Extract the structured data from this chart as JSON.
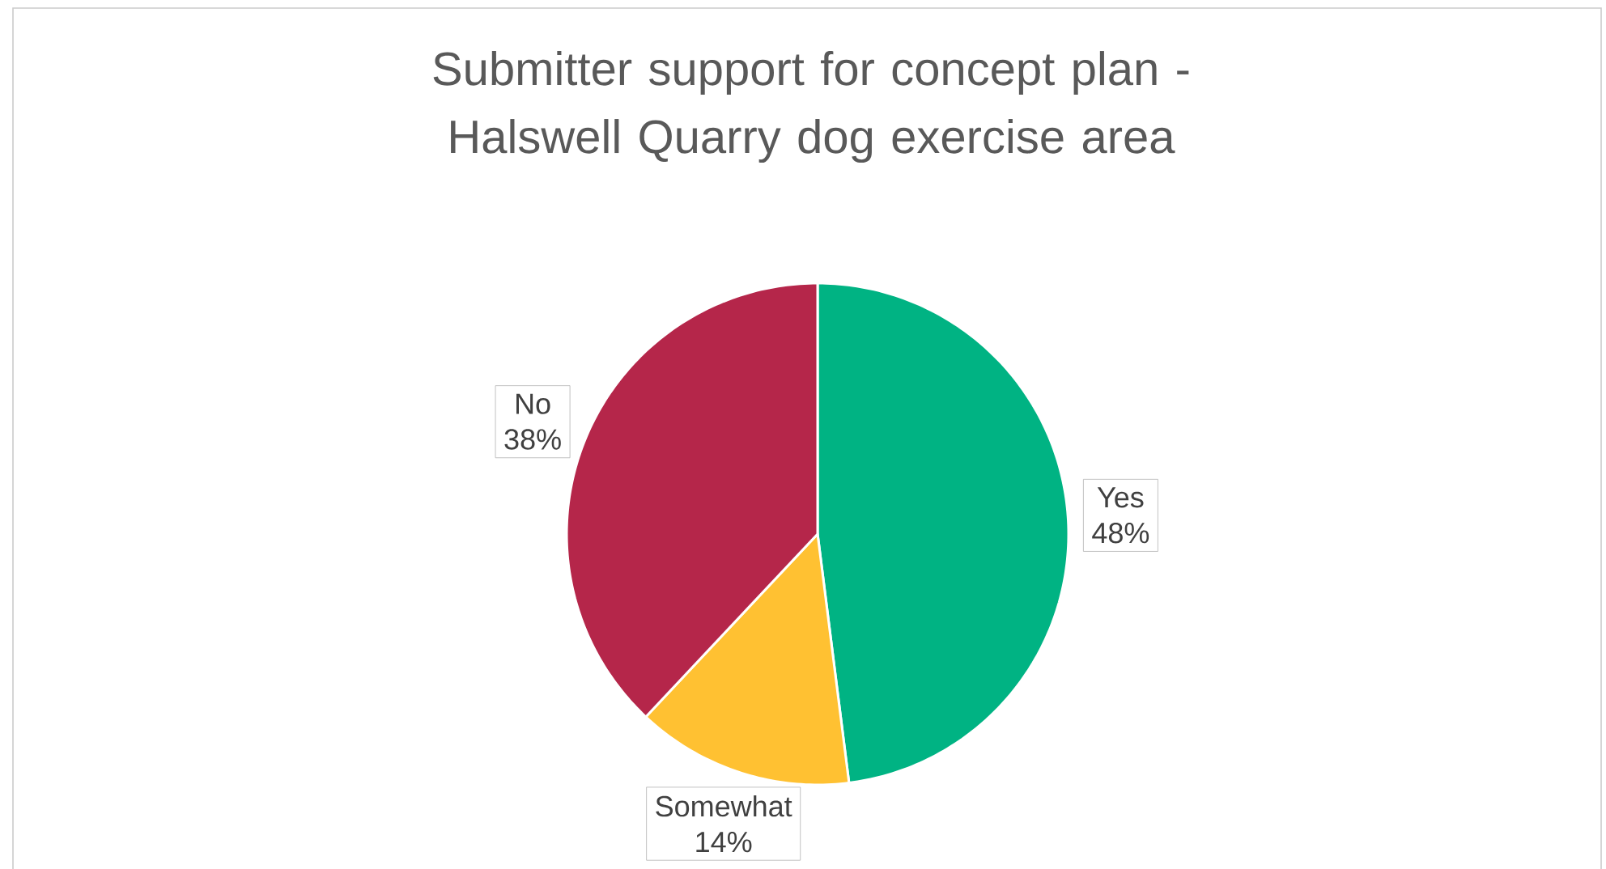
{
  "chart_data": {
    "type": "pie",
    "title": "Submitter support for concept plan - Halswell Quarry dog exercise area",
    "categories": [
      "Yes",
      "Somewhat",
      "No"
    ],
    "values": [
      48,
      14,
      38
    ],
    "value_labels": [
      "48%",
      "14%",
      "38%"
    ],
    "colors": [
      "#00b383",
      "#ffc132",
      "#b5264a"
    ]
  }
}
